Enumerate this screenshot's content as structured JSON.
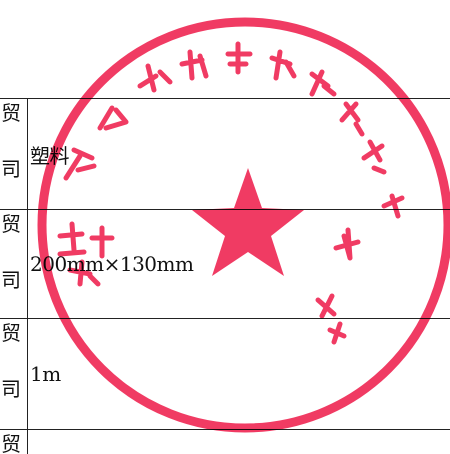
{
  "table": {
    "rows": [
      {
        "label_top": "贸",
        "label_bottom": "司",
        "value": "塑料"
      },
      {
        "label_top": "贸",
        "label_bottom": "司",
        "value": "200mm×130mm"
      },
      {
        "label_top": "贸",
        "label_bottom": "司",
        "value": "1m"
      },
      {
        "label_top": "贸",
        "label_bottom": "",
        "value": ""
      }
    ]
  },
  "seal": {
    "text": "浙江湘头商贸有限公司 …",
    "color": "#ef2a55"
  }
}
